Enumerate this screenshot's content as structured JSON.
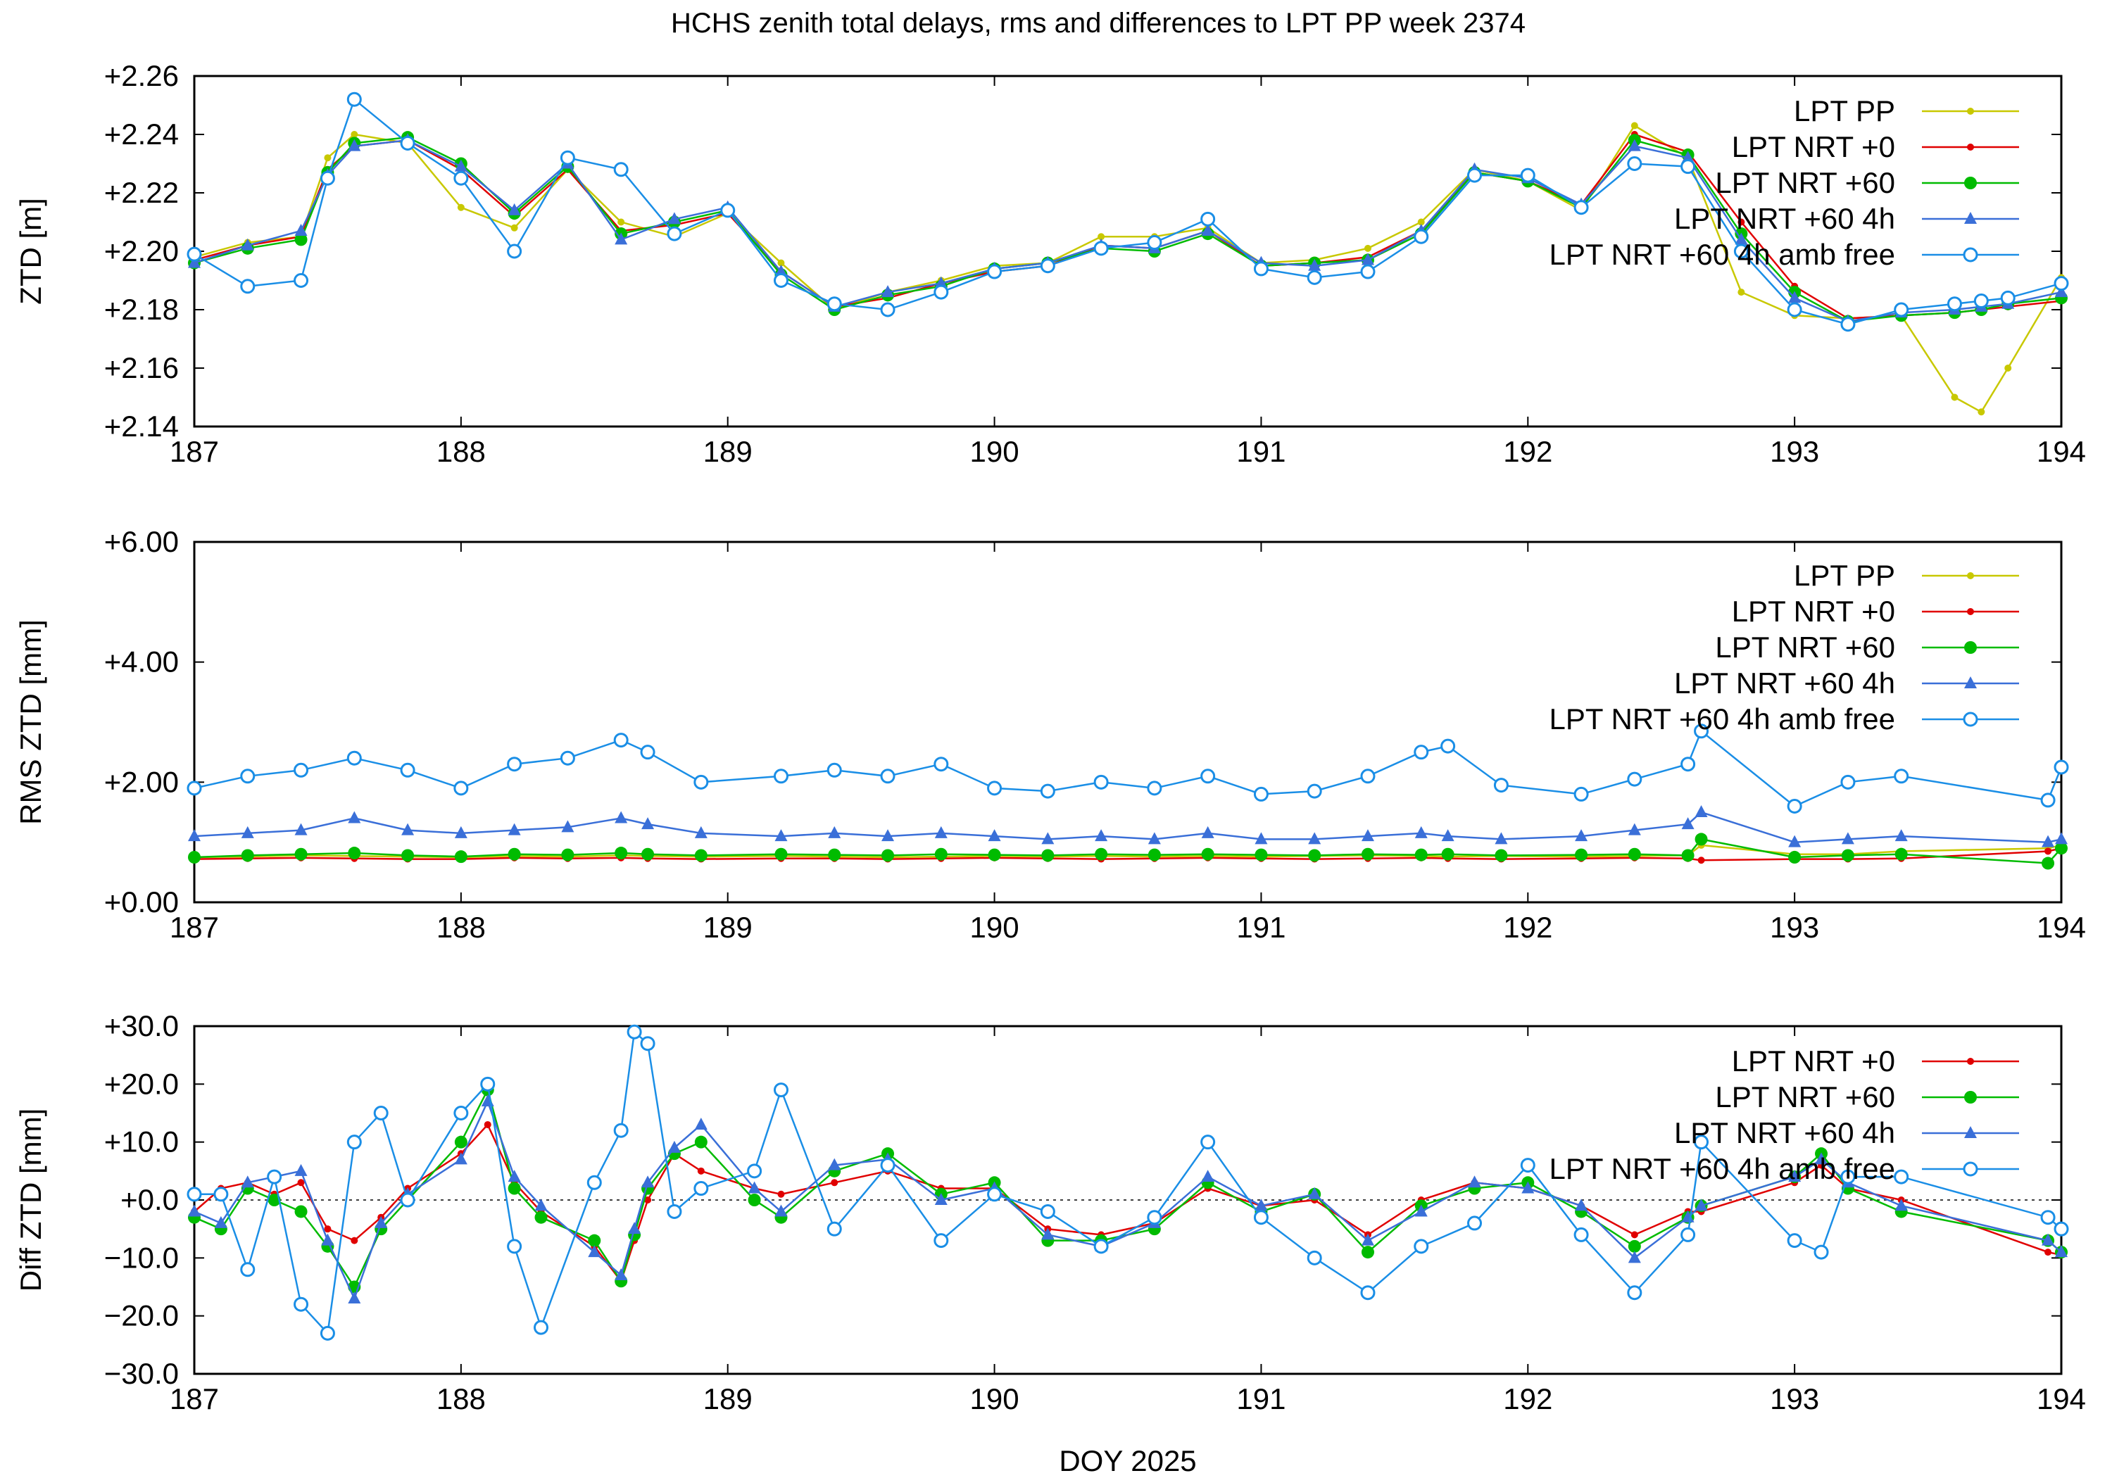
{
  "title": "HCHS zenith total delays, rms and differences to LPT PP week 2374",
  "xlabel": "DOY 2025",
  "colors": {
    "lpt_pp": "#c8c800",
    "nrt0": "#e00000",
    "nrt60": "#00bb00",
    "nrt60_4h": "#3a6fd8",
    "nrt60_4h_amb": "#1a8ee6"
  },
  "chart_data": [
    {
      "type": "line",
      "panel": "ztd",
      "ylabel": "ZTD [m]",
      "xlim": [
        187,
        194
      ],
      "ylim": [
        2.14,
        2.26
      ],
      "xticks": [
        "187",
        "188",
        "189",
        "190",
        "191",
        "192",
        "193",
        "194"
      ],
      "yticks": [
        "+2.14",
        "+2.16",
        "+2.18",
        "+2.20",
        "+2.22",
        "+2.24",
        "+2.26"
      ],
      "legend": [
        "LPT PP",
        "LPT NRT +0",
        "LPT NRT +60",
        "LPT NRT +60 4h",
        "LPT NRT +60 4h amb free"
      ],
      "legend_position": "top-right",
      "x": [
        187.0,
        187.2,
        187.4,
        187.5,
        187.6,
        187.8,
        188.0,
        188.2,
        188.4,
        188.6,
        188.8,
        189.0,
        189.2,
        189.4,
        189.6,
        189.8,
        190.0,
        190.2,
        190.4,
        190.6,
        190.8,
        191.0,
        191.2,
        191.4,
        191.6,
        191.8,
        192.0,
        192.2,
        192.4,
        192.6,
        192.8,
        193.0,
        193.2,
        193.4,
        193.6,
        193.7,
        193.8,
        194.0
      ],
      "series": [
        {
          "name": "LPT PP",
          "color_key": "lpt_pp",
          "marker": "dot",
          "values": [
            2.198,
            2.203,
            2.205,
            2.232,
            2.24,
            2.237,
            2.215,
            2.208,
            2.228,
            2.21,
            2.205,
            2.213,
            2.196,
            2.18,
            2.186,
            2.19,
            2.195,
            2.196,
            2.205,
            2.205,
            2.208,
            2.196,
            2.197,
            2.201,
            2.21,
            2.228,
            2.224,
            2.214,
            2.243,
            2.232,
            2.186,
            2.178,
            2.177,
            2.178,
            2.15,
            2.145,
            2.16,
            2.191
          ]
        },
        {
          "name": "LPT NRT +0",
          "color_key": "nrt0",
          "marker": "dot",
          "values": [
            2.197,
            2.202,
            2.205,
            2.228,
            2.236,
            2.238,
            2.228,
            2.212,
            2.228,
            2.207,
            2.209,
            2.213,
            2.193,
            2.181,
            2.184,
            2.189,
            2.193,
            2.195,
            2.202,
            2.201,
            2.207,
            2.195,
            2.196,
            2.198,
            2.207,
            2.227,
            2.224,
            2.216,
            2.24,
            2.234,
            2.21,
            2.188,
            2.177,
            2.178,
            2.179,
            2.18,
            2.181,
            2.183
          ]
        },
        {
          "name": "LPT NRT +60",
          "color_key": "nrt60",
          "marker": "circle-filled",
          "values": [
            2.196,
            2.201,
            2.204,
            2.227,
            2.237,
            2.239,
            2.23,
            2.213,
            2.229,
            2.206,
            2.21,
            2.214,
            2.192,
            2.18,
            2.185,
            2.188,
            2.194,
            2.196,
            2.201,
            2.2,
            2.206,
            2.195,
            2.196,
            2.197,
            2.206,
            2.227,
            2.224,
            2.215,
            2.238,
            2.233,
            2.206,
            2.186,
            2.176,
            2.178,
            2.179,
            2.18,
            2.182,
            2.184
          ]
        },
        {
          "name": "LPT NRT +60 4h",
          "color_key": "nrt60_4h",
          "marker": "triangle",
          "values": [
            2.196,
            2.202,
            2.207,
            2.226,
            2.236,
            2.238,
            2.229,
            2.214,
            2.23,
            2.204,
            2.211,
            2.215,
            2.193,
            2.181,
            2.186,
            2.189,
            2.194,
            2.196,
            2.202,
            2.201,
            2.207,
            2.196,
            2.195,
            2.197,
            2.207,
            2.228,
            2.225,
            2.216,
            2.236,
            2.232,
            2.204,
            2.184,
            2.176,
            2.179,
            2.18,
            2.181,
            2.182,
            2.186
          ]
        },
        {
          "name": "LPT NRT +60 4h amb free",
          "color_key": "nrt60_4h_amb",
          "marker": "circle-open",
          "values": [
            2.199,
            2.188,
            2.19,
            2.225,
            2.252,
            2.237,
            2.225,
            2.2,
            2.232,
            2.228,
            2.206,
            2.214,
            2.19,
            2.182,
            2.18,
            2.186,
            2.193,
            2.195,
            2.201,
            2.203,
            2.211,
            2.194,
            2.191,
            2.193,
            2.205,
            2.226,
            2.226,
            2.215,
            2.23,
            2.229,
            2.2,
            2.18,
            2.175,
            2.18,
            2.182,
            2.183,
            2.184,
            2.189
          ]
        }
      ]
    },
    {
      "type": "line",
      "panel": "rms",
      "ylabel": "RMS ZTD [mm]",
      "xlim": [
        187,
        194
      ],
      "ylim": [
        0,
        6
      ],
      "xticks": [
        "187",
        "188",
        "189",
        "190",
        "191",
        "192",
        "193",
        "194"
      ],
      "yticks": [
        "+0.00",
        "+2.00",
        "+4.00",
        "+6.00"
      ],
      "legend": [
        "LPT PP",
        "LPT NRT +0",
        "LPT NRT +60",
        "LPT NRT +60 4h",
        "LPT NRT +60 4h amb free"
      ],
      "legend_position": "top-right",
      "x": [
        187.0,
        187.2,
        187.4,
        187.6,
        187.8,
        188.0,
        188.2,
        188.4,
        188.6,
        188.7,
        188.9,
        189.2,
        189.4,
        189.6,
        189.8,
        190.0,
        190.2,
        190.4,
        190.6,
        190.8,
        191.0,
        191.2,
        191.4,
        191.6,
        191.7,
        191.9,
        192.2,
        192.4,
        192.6,
        192.65,
        193.0,
        193.2,
        193.4,
        193.95,
        194.0
      ],
      "series": [
        {
          "name": "LPT PP",
          "color_key": "lpt_pp",
          "marker": "dot",
          "values": [
            0.75,
            0.76,
            0.78,
            0.77,
            0.76,
            0.75,
            0.77,
            0.76,
            0.78,
            0.77,
            0.76,
            0.77,
            0.76,
            0.75,
            0.76,
            0.77,
            0.76,
            0.77,
            0.76,
            0.77,
            0.76,
            0.77,
            0.78,
            0.77,
            0.76,
            0.77,
            0.76,
            0.77,
            0.78,
            0.95,
            0.8,
            0.8,
            0.85,
            0.9,
            0.95
          ]
        },
        {
          "name": "LPT NRT +0",
          "color_key": "nrt0",
          "marker": "dot",
          "values": [
            0.72,
            0.73,
            0.74,
            0.73,
            0.72,
            0.72,
            0.74,
            0.73,
            0.74,
            0.73,
            0.72,
            0.73,
            0.73,
            0.72,
            0.73,
            0.74,
            0.73,
            0.72,
            0.73,
            0.74,
            0.73,
            0.72,
            0.73,
            0.74,
            0.73,
            0.72,
            0.73,
            0.74,
            0.73,
            0.7,
            0.72,
            0.72,
            0.73,
            0.85,
            0.9
          ]
        },
        {
          "name": "LPT NRT +60",
          "color_key": "nrt60",
          "marker": "circle-filled",
          "values": [
            0.75,
            0.78,
            0.8,
            0.82,
            0.78,
            0.76,
            0.8,
            0.79,
            0.82,
            0.8,
            0.78,
            0.8,
            0.79,
            0.78,
            0.8,
            0.79,
            0.78,
            0.8,
            0.79,
            0.8,
            0.79,
            0.78,
            0.8,
            0.79,
            0.8,
            0.78,
            0.79,
            0.8,
            0.78,
            1.05,
            0.75,
            0.78,
            0.8,
            0.65,
            0.9
          ]
        },
        {
          "name": "LPT NRT +60 4h",
          "color_key": "nrt60_4h",
          "marker": "triangle",
          "values": [
            1.1,
            1.15,
            1.2,
            1.4,
            1.2,
            1.15,
            1.2,
            1.25,
            1.4,
            1.3,
            1.15,
            1.1,
            1.15,
            1.1,
            1.15,
            1.1,
            1.05,
            1.1,
            1.05,
            1.15,
            1.05,
            1.05,
            1.1,
            1.15,
            1.1,
            1.05,
            1.1,
            1.2,
            1.3,
            1.5,
            1.0,
            1.05,
            1.1,
            1.0,
            1.05
          ]
        },
        {
          "name": "LPT NRT +60 4h amb free",
          "color_key": "nrt60_4h_amb",
          "marker": "circle-open",
          "values": [
            1.9,
            2.1,
            2.2,
            2.4,
            2.2,
            1.9,
            2.3,
            2.4,
            2.7,
            2.5,
            2.0,
            2.1,
            2.2,
            2.1,
            2.3,
            1.9,
            1.85,
            2.0,
            1.9,
            2.1,
            1.8,
            1.85,
            2.1,
            2.5,
            2.6,
            1.95,
            1.8,
            2.05,
            2.3,
            2.85,
            1.6,
            2.0,
            2.1,
            1.7,
            2.25
          ]
        }
      ]
    },
    {
      "type": "line",
      "panel": "diff",
      "ylabel": "Diff ZTD [mm]",
      "xlim": [
        187,
        194
      ],
      "ylim": [
        -30,
        30
      ],
      "xticks": [
        "187",
        "188",
        "189",
        "190",
        "191",
        "192",
        "193",
        "194"
      ],
      "yticks": [
        "−30.0",
        "−20.0",
        "−10.0",
        "+0.0",
        "+10.0",
        "+20.0",
        "+30.0"
      ],
      "legend": [
        "LPT NRT +0",
        "LPT NRT +60",
        "LPT NRT +60 4h",
        "LPT NRT +60 4h amb free"
      ],
      "legend_position": "top-right",
      "zero_line": true,
      "x": [
        187.0,
        187.1,
        187.2,
        187.3,
        187.4,
        187.5,
        187.6,
        187.7,
        187.8,
        188.0,
        188.1,
        188.2,
        188.3,
        188.5,
        188.6,
        188.65,
        188.7,
        188.8,
        188.9,
        189.1,
        189.2,
        189.4,
        189.6,
        189.8,
        190.0,
        190.2,
        190.4,
        190.6,
        190.8,
        191.0,
        191.2,
        191.4,
        191.6,
        191.8,
        192.0,
        192.2,
        192.4,
        192.6,
        192.65,
        193.0,
        193.1,
        193.2,
        193.4,
        193.95,
        194.0
      ],
      "series": [
        {
          "name": "LPT NRT +0",
          "color_key": "nrt0",
          "marker": "dot",
          "values": [
            -2,
            2,
            3,
            1,
            3,
            -5,
            -7,
            -3,
            2,
            8,
            13,
            3,
            -2,
            -8,
            -14,
            -7,
            0,
            8,
            5,
            2,
            1,
            3,
            5,
            2,
            2,
            -5,
            -6,
            -4,
            2,
            -1,
            0,
            -6,
            0,
            3,
            2,
            -1,
            -6,
            -2,
            -2,
            3,
            6,
            2,
            0,
            -9,
            -9.5
          ]
        },
        {
          "name": "LPT NRT +60",
          "color_key": "nrt60",
          "marker": "circle-filled",
          "values": [
            -3,
            -5,
            2,
            0,
            -2,
            -8,
            -15,
            -5,
            0,
            10,
            19,
            2,
            -3,
            -7,
            -14,
            -6,
            2,
            8,
            10,
            0,
            -3,
            5,
            8,
            1,
            3,
            -7,
            -7,
            -5,
            3,
            -2,
            1,
            -9,
            -1,
            2,
            3,
            -2,
            -8,
            -3,
            -1,
            4,
            8,
            2,
            -2,
            -7,
            -9
          ]
        },
        {
          "name": "LPT NRT +60 4h",
          "color_key": "nrt60_4h",
          "marker": "triangle",
          "values": [
            -2,
            -4,
            3,
            4,
            5,
            -7,
            -17,
            -4,
            1,
            7,
            17,
            4,
            -1,
            -9,
            -13,
            -5,
            3,
            9,
            13,
            2,
            -2,
            6,
            7,
            0,
            2,
            -6,
            -8,
            -4,
            4,
            -1,
            1,
            -7,
            -2,
            3,
            2,
            -1,
            -10,
            -3,
            -1,
            4,
            7,
            3,
            -1,
            -7,
            -9
          ]
        },
        {
          "name": "LPT NRT +60 4h amb free",
          "color_key": "nrt60_4h_amb",
          "marker": "circle-open",
          "values": [
            1,
            1,
            -12,
            4,
            -18,
            -23,
            10,
            15,
            0,
            15,
            20,
            -8,
            -22,
            3,
            12,
            29,
            27,
            -2,
            2,
            5,
            19,
            -5,
            6,
            -7,
            1,
            -2,
            -8,
            -3,
            10,
            -3,
            -10,
            -16,
            -8,
            -4,
            6,
            -6,
            -16,
            -6,
            10,
            -7,
            -9,
            4,
            4,
            -3,
            -5
          ]
        }
      ]
    }
  ]
}
